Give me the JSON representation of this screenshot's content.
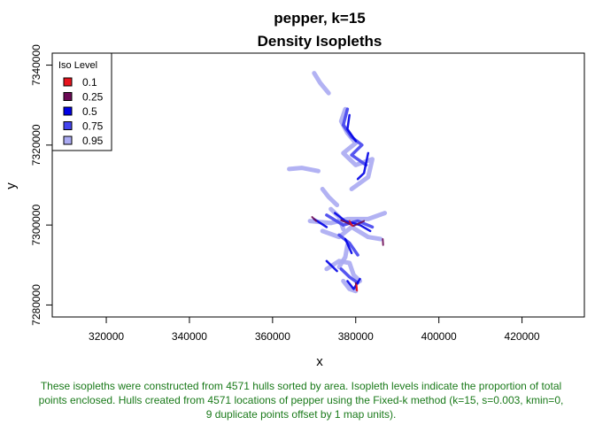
{
  "chart_data": {
    "type": "area",
    "title": "pepper, k=15",
    "subtitle": "Density Isopleths",
    "xlabel": "x",
    "ylabel": "y",
    "xlim": [
      307000,
      435000
    ],
    "ylim": [
      7277000,
      7343000
    ],
    "xticks": [
      320000,
      340000,
      360000,
      380000,
      400000,
      420000
    ],
    "yticks": [
      7280000,
      7300000,
      7320000,
      7340000
    ],
    "legend": {
      "title": "Iso Level",
      "placement": "top-left",
      "entries": [
        {
          "label": "0.1",
          "color": "#e8141e"
        },
        {
          "label": "0.25",
          "color": "#6b0a55"
        },
        {
          "label": "0.5",
          "color": "#0000e6"
        },
        {
          "label": "0.75",
          "color": "#4444ee"
        },
        {
          "label": "0.95",
          "color": "#aaaaf2"
        }
      ]
    },
    "series": [
      {
        "iso": "0.95",
        "color": "#aaaaf2",
        "paths": [
          [
            [
              370000,
              7338000
            ],
            [
              371500,
              7335500
            ],
            [
              373500,
              7333000
            ]
          ],
          [
            [
              364000,
              7314000
            ],
            [
              367000,
              7314300
            ],
            [
              371000,
              7313500
            ]
          ],
          [
            [
              377500,
              7329000
            ],
            [
              376500,
              7326000
            ],
            [
              378000,
              7323000
            ],
            [
              380000,
              7320500
            ],
            [
              377000,
              7318000
            ],
            [
              380000,
              7315000
            ],
            [
              384000,
              7316500
            ],
            [
              383000,
              7312000
            ],
            [
              379000,
              7309000
            ]
          ],
          [
            [
              372000,
              7309000
            ],
            [
              373500,
              7307000
            ],
            [
              375500,
              7305000
            ]
          ],
          [
            [
              369000,
              7301000
            ],
            [
              374000,
              7300500
            ],
            [
              378000,
              7301500
            ],
            [
              383000,
              7301500
            ],
            [
              387000,
              7303000
            ]
          ],
          [
            [
              372000,
              7298500
            ],
            [
              376000,
              7297000
            ],
            [
              379000,
              7299500
            ],
            [
              383000,
              7297000
            ],
            [
              386000,
              7296500
            ]
          ],
          [
            [
              374000,
              7304000
            ],
            [
              376000,
              7302000
            ],
            [
              377000,
              7299000
            ]
          ],
          [
            [
              373000,
              7289000
            ],
            [
              376000,
              7291000
            ],
            [
              378500,
              7290500
            ],
            [
              379500,
              7287500
            ],
            [
              381000,
              7286000
            ]
          ],
          [
            [
              378000,
              7295000
            ],
            [
              377500,
              7292000
            ],
            [
              376000,
              7289500
            ]
          ],
          [
            [
              377000,
              7286000
            ],
            [
              378500,
              7284000
            ],
            [
              380000,
              7283500
            ]
          ]
        ]
      },
      {
        "iso": "0.75",
        "color": "#4444ee",
        "paths": [
          [
            [
              378000,
              7329000
            ],
            [
              377000,
              7325000
            ],
            [
              379000,
              7322000
            ],
            [
              381500,
              7320000
            ],
            [
              379000,
              7317500
            ],
            [
              382500,
              7315000
            ]
          ],
          [
            [
              373000,
              7302500
            ],
            [
              377000,
              7300000
            ],
            [
              380500,
              7301000
            ],
            [
              384000,
              7299500
            ]
          ],
          [
            [
              376000,
              7297500
            ],
            [
              378500,
              7295500
            ],
            [
              380500,
              7292500
            ]
          ],
          [
            [
              376500,
              7289000
            ],
            [
              378500,
              7287000
            ],
            [
              380500,
              7285500
            ]
          ]
        ]
      },
      {
        "iso": "0.5",
        "color": "#0000e6",
        "paths": [
          [
            [
              378500,
              7327500
            ],
            [
              378000,
              7324000
            ],
            [
              380000,
              7321000
            ]
          ],
          [
            [
              383000,
              7318000
            ],
            [
              382000,
              7313000
            ],
            [
              380500,
              7311500
            ]
          ],
          [
            [
              375000,
              7303000
            ],
            [
              377500,
              7301000
            ],
            [
              381000,
              7300000
            ],
            [
              383500,
              7298500
            ]
          ],
          [
            [
              370000,
              7301500
            ],
            [
              373000,
              7299500
            ]
          ],
          [
            [
              377500,
              7296500
            ],
            [
              379000,
              7293000
            ]
          ],
          [
            [
              373000,
              7291000
            ],
            [
              375500,
              7288500
            ]
          ],
          [
            [
              378000,
              7286000
            ],
            [
              379500,
              7284000
            ],
            [
              381000,
              7286500
            ]
          ]
        ]
      },
      {
        "iso": "0.25",
        "color": "#6b0a55",
        "paths": [
          [
            [
              376500,
              7301200
            ],
            [
              379500,
              7299800
            ],
            [
              382000,
              7301000
            ]
          ],
          [
            [
              369500,
              7302000
            ],
            [
              370500,
              7301000
            ]
          ],
          [
            [
              380000,
              7285500
            ],
            [
              380200,
              7283800
            ]
          ],
          [
            [
              386500,
              7296500
            ],
            [
              386600,
              7295000
            ]
          ]
        ]
      },
      {
        "iso": "0.1",
        "color": "#e8141e",
        "paths": [
          [
            [
              378500,
              7301000
            ],
            [
              379200,
              7299800
            ]
          ],
          [
            [
              380200,
              7285000
            ],
            [
              380300,
              7283600
            ]
          ]
        ]
      }
    ]
  },
  "caption": "These isopleths were constructed from 4571 hulls sorted by area. Isopleth levels indicate the proportion of total points enclosed. Hulls created from 4571 locations of pepper using the Fixed-k method (k=15, s=0.003, kmin=0, 9 duplicate points offset by 1 map units)."
}
